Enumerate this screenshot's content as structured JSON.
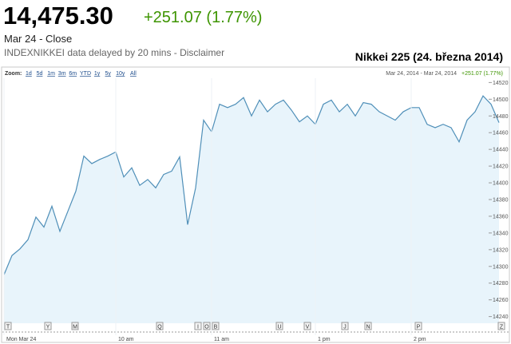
{
  "header": {
    "price": "14,475.30",
    "change": "+251.07 (1.77%)",
    "date": "Mar 24 - Close",
    "source": "INDEXNIKKEI data delayed by 20 mins - Disclaimer"
  },
  "zoom": {
    "label": "Zoom:",
    "options": [
      "1d",
      "5d",
      "1m",
      "3m",
      "6m",
      "YTD",
      "1y",
      "5y",
      "10y",
      "All"
    ],
    "range": "Mar 24, 2014 - Mar 24, 2014",
    "range_change": "+251.07 (1.77%)"
  },
  "flags": [
    "T",
    "Y",
    "M",
    "Q",
    "I",
    "O",
    "B",
    "U",
    "V",
    "J",
    "N",
    "P",
    "Z"
  ],
  "chart_data": {
    "type": "line",
    "title": "Nikkei 225 (24. března 2014)",
    "categories": [
      "Mon Mar 24",
      null,
      null,
      null,
      null,
      null,
      null,
      null,
      null,
      null,
      null,
      null,
      null,
      null,
      "10 am",
      null,
      null,
      null,
      null,
      null,
      null,
      null,
      null,
      null,
      null,
      null,
      "11 am",
      null,
      null,
      null,
      null,
      null,
      null,
      null,
      null,
      null,
      null,
      null,
      null,
      "1 pm",
      null,
      null,
      null,
      null,
      null,
      null,
      null,
      null,
      null,
      null,
      null,
      "2 pm",
      null,
      null,
      null,
      null,
      null,
      null,
      null,
      null,
      null,
      null,
      null
    ],
    "series": [
      {
        "name": "INDEXNIKKEI",
        "color": "#4f8fb8",
        "values": [
          14290,
          14313,
          14321,
          14332,
          14359,
          14347,
          14372,
          14342,
          14366,
          14390,
          14432,
          14423,
          14428,
          14432,
          14437,
          14407,
          14418,
          14397,
          14404,
          14394,
          14410,
          14414,
          14431,
          14350,
          14394,
          14475,
          14461,
          14494,
          14490,
          14494,
          14502,
          14480,
          14499,
          14485,
          14494,
          14499,
          14487,
          14473,
          14480,
          14470,
          14494,
          14499,
          14485,
          14494,
          14480,
          14496,
          14494,
          14485,
          14480,
          14475,
          14485,
          14490,
          14490,
          14470,
          14466,
          14470,
          14466,
          14449,
          14475,
          14485,
          14504,
          14494,
          14472
        ]
      }
    ],
    "ylim": [
      14232,
      14528
    ],
    "yticks": [
      14240,
      14260,
      14280,
      14300,
      14320,
      14340,
      14360,
      14380,
      14400,
      14420,
      14440,
      14460,
      14480,
      14500,
      14520
    ],
    "grid": false
  }
}
